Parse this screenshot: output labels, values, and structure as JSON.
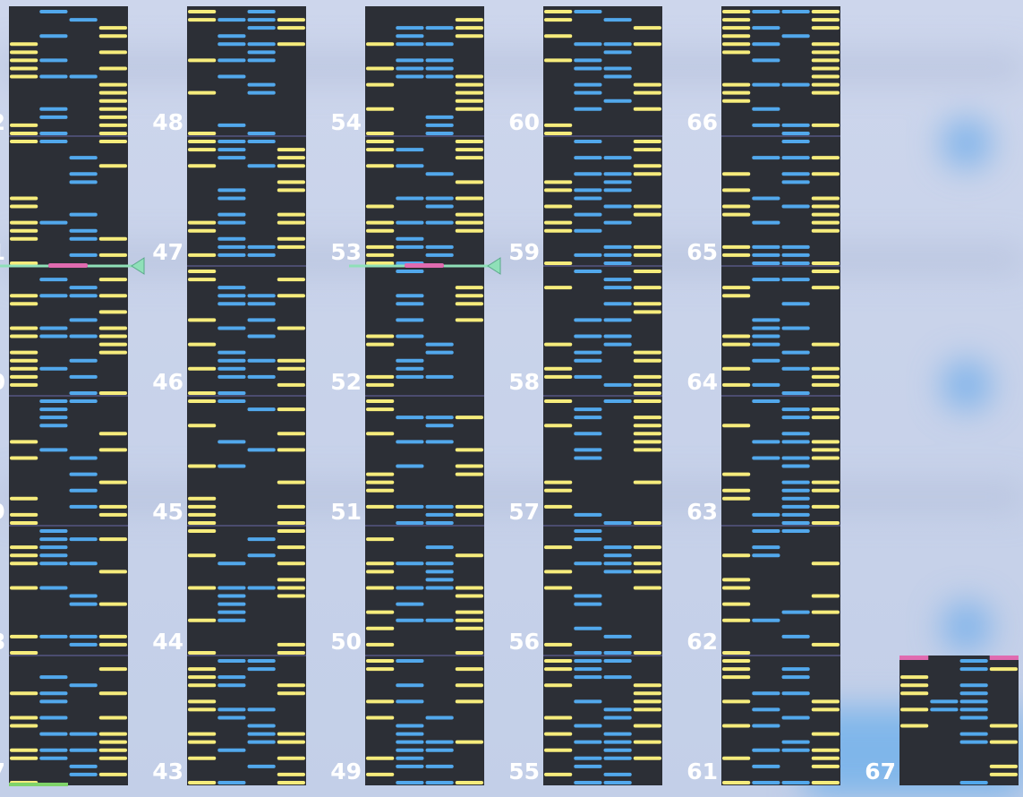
{
  "columns": [
    {
      "labels": [
        "7",
        "8",
        "9",
        "0",
        "1",
        "2"
      ]
    },
    {
      "labels": [
        "43",
        "44",
        "45",
        "46",
        "47",
        "48"
      ]
    },
    {
      "labels": [
        "49",
        "50",
        "51",
        "52",
        "53",
        "54"
      ]
    },
    {
      "labels": [
        "55",
        "56",
        "57",
        "58",
        "59",
        "60"
      ]
    },
    {
      "labels": [
        "61",
        "62",
        "63",
        "64",
        "65",
        "66"
      ]
    },
    {
      "labels": [
        "67"
      ]
    }
  ]
}
